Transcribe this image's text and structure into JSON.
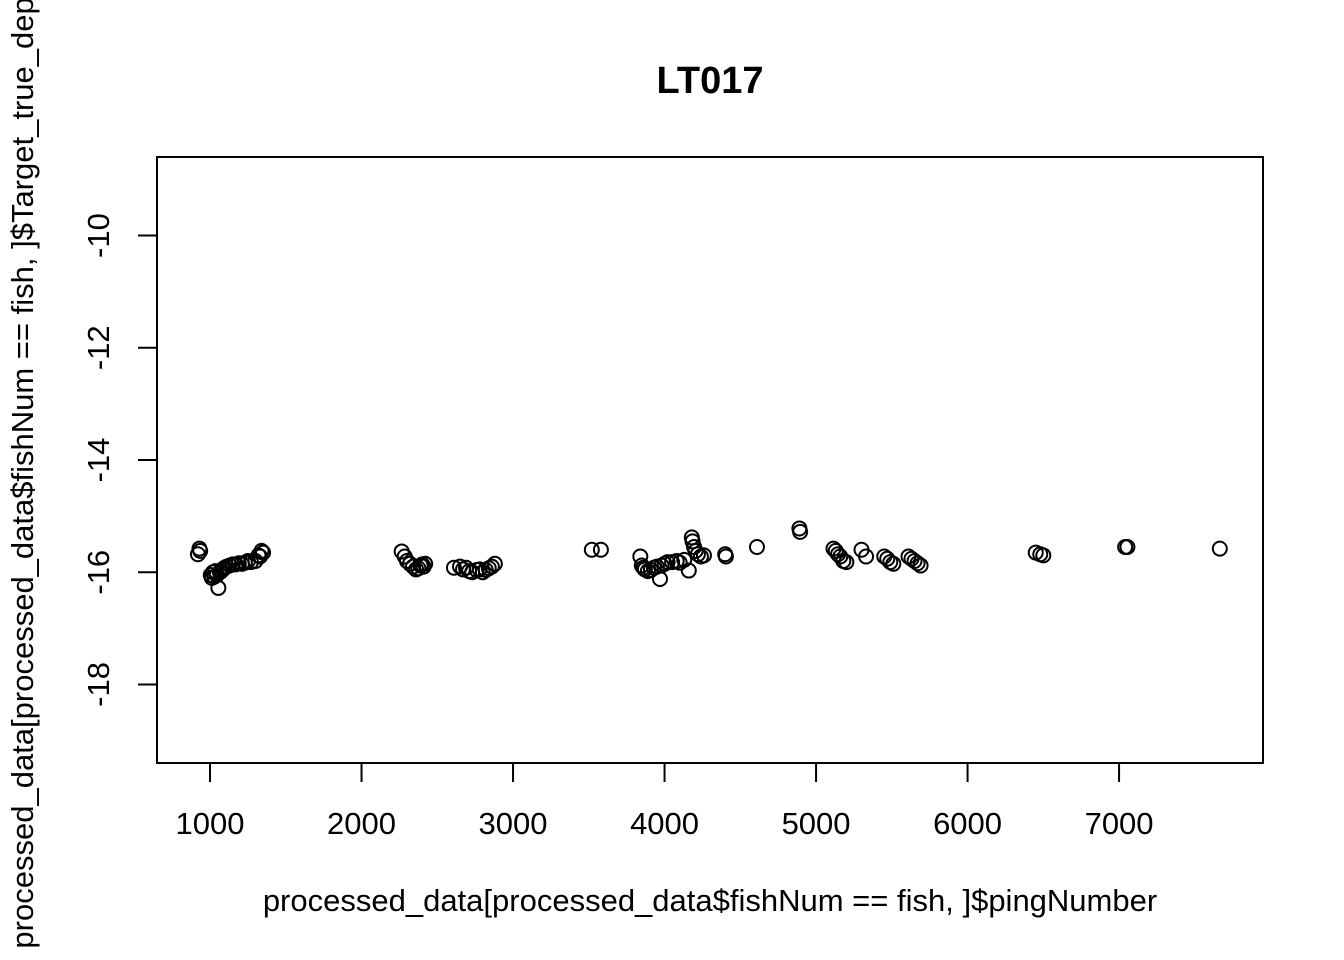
{
  "chart_data": {
    "type": "scatter",
    "title": "LT017",
    "xlabel": "processed_data[processed_data$fishNum == fish, ]$pingNumber",
    "ylabel": "processed_data[processed_data$fishNum == fish, ]$Target_true_depth",
    "xlim": [
      650,
      7950
    ],
    "ylim": [
      -19.4,
      -8.6
    ],
    "xticks": [
      1000,
      2000,
      3000,
      4000,
      5000,
      6000,
      7000
    ],
    "yticks": [
      -18,
      -16,
      -14,
      -12,
      -10
    ],
    "marker": "open-circle",
    "grid": false,
    "legend": "none",
    "x": [
      920,
      930,
      935,
      1005,
      1012,
      1020,
      1028,
      1035,
      1045,
      1055,
      1065,
      1075,
      1085,
      1095,
      1110,
      1130,
      1150,
      1170,
      1190,
      1210,
      1230,
      1250,
      1270,
      1300,
      1320,
      1330,
      1340,
      1350,
      2265,
      2285,
      2300,
      2320,
      2340,
      2360,
      2375,
      2390,
      2400,
      2410,
      2420,
      2610,
      2650,
      2670,
      2690,
      2710,
      2730,
      2760,
      2780,
      2800,
      2820,
      2840,
      2860,
      2880,
      3520,
      3580,
      3840,
      3850,
      3860,
      3870,
      3890,
      3910,
      3930,
      3950,
      3970,
      3980,
      4000,
      4020,
      4050,
      4080,
      4100,
      4130,
      4160,
      4180,
      4185,
      4195,
      4205,
      4220,
      4240,
      4260,
      4400,
      4405,
      4610,
      4890,
      4895,
      5115,
      5130,
      5145,
      5160,
      5180,
      5200,
      5300,
      5330,
      5450,
      5470,
      5490,
      5510,
      5610,
      5630,
      5650,
      5670,
      5690,
      6450,
      6480,
      6500,
      7040,
      7055,
      7665
    ],
    "y": [
      -15.68,
      -15.58,
      -15.62,
      -16.05,
      -16.1,
      -16.0,
      -16.08,
      -15.98,
      -16.05,
      -16.28,
      -16.0,
      -15.98,
      -15.95,
      -15.92,
      -15.9,
      -15.88,
      -15.86,
      -15.86,
      -15.84,
      -15.85,
      -15.83,
      -15.8,
      -15.82,
      -15.8,
      -15.7,
      -15.72,
      -15.62,
      -15.65,
      -15.63,
      -15.72,
      -15.8,
      -15.85,
      -15.9,
      -15.95,
      -15.93,
      -15.88,
      -15.86,
      -15.9,
      -15.85,
      -15.92,
      -15.9,
      -15.95,
      -15.92,
      -15.98,
      -16.0,
      -15.96,
      -15.95,
      -16.0,
      -15.96,
      -15.93,
      -15.9,
      -15.85,
      -15.6,
      -15.6,
      -15.72,
      -15.88,
      -15.92,
      -15.95,
      -15.98,
      -15.96,
      -15.92,
      -15.9,
      -16.12,
      -15.88,
      -15.85,
      -15.82,
      -15.82,
      -15.8,
      -15.83,
      -15.78,
      -15.97,
      -15.38,
      -15.45,
      -15.55,
      -15.62,
      -15.68,
      -15.72,
      -15.7,
      -15.68,
      -15.72,
      -15.55,
      -15.22,
      -15.28,
      -15.58,
      -15.62,
      -15.68,
      -15.72,
      -15.8,
      -15.82,
      -15.6,
      -15.72,
      -15.72,
      -15.76,
      -15.82,
      -15.85,
      -15.72,
      -15.76,
      -15.8,
      -15.84,
      -15.88,
      -15.65,
      -15.68,
      -15.7,
      -15.55,
      -15.55,
      -15.58
    ]
  }
}
